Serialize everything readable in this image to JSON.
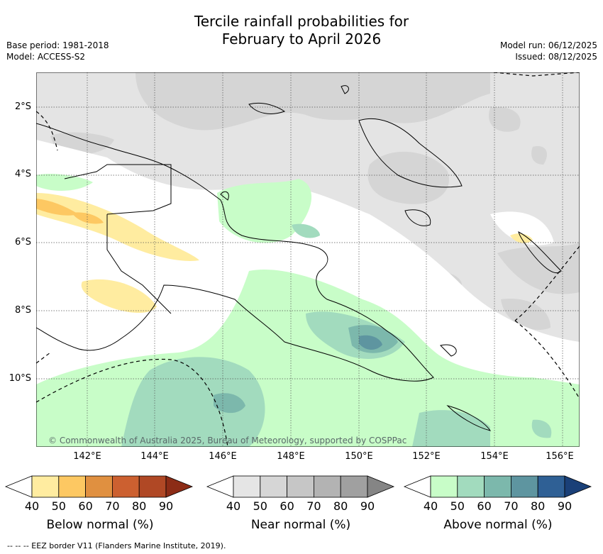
{
  "header": {
    "title_line1": "Tercile rainfall probabilities for",
    "title_line2": "February to April 2026",
    "base_period": "Base period: 1981-2018",
    "model": "Model: ACCESS-S2",
    "model_run": "Model run: 06/12/2025",
    "issued": "Issued: 08/12/2025"
  },
  "map": {
    "lat_labels": [
      "2°S",
      "4°S",
      "6°S",
      "8°S",
      "10°S"
    ],
    "lon_labels": [
      "142°E",
      "144°E",
      "146°E",
      "148°E",
      "150°E",
      "152°E",
      "154°E",
      "156°E"
    ],
    "copyright": "© Commonwealth of Australia 2025, Bureau of Meteorology, supported by COSPPac",
    "land_color": "#ffffff",
    "grid": true
  },
  "colorbars": [
    {
      "title": "Below normal (%)",
      "ticks": [
        "40",
        "50",
        "60",
        "70",
        "80",
        "90"
      ],
      "colors": [
        "#ffffff",
        "#ffeca0",
        "#fdc862",
        "#e09040",
        "#cc6030",
        "#b04825",
        "#8c2c16"
      ]
    },
    {
      "title": "Near normal (%)",
      "ticks": [
        "40",
        "50",
        "60",
        "70",
        "80",
        "90"
      ],
      "colors": [
        "#ffffff",
        "#e5e5e5",
        "#d6d6d6",
        "#c6c6c6",
        "#b3b3b3",
        "#a0a0a0",
        "#858585"
      ]
    },
    {
      "title": "Above normal (%)",
      "ticks": [
        "40",
        "50",
        "60",
        "70",
        "80",
        "90"
      ],
      "colors": [
        "#ffffff",
        "#c8fdc8",
        "#a2dbbe",
        "#7cb8ac",
        "#5e95a0",
        "#2f6095",
        "#1a4078"
      ]
    }
  ],
  "footer": {
    "legend_text": "--  --  -- EEZ border V11 (Flanders Marine Institute, 2019)."
  }
}
